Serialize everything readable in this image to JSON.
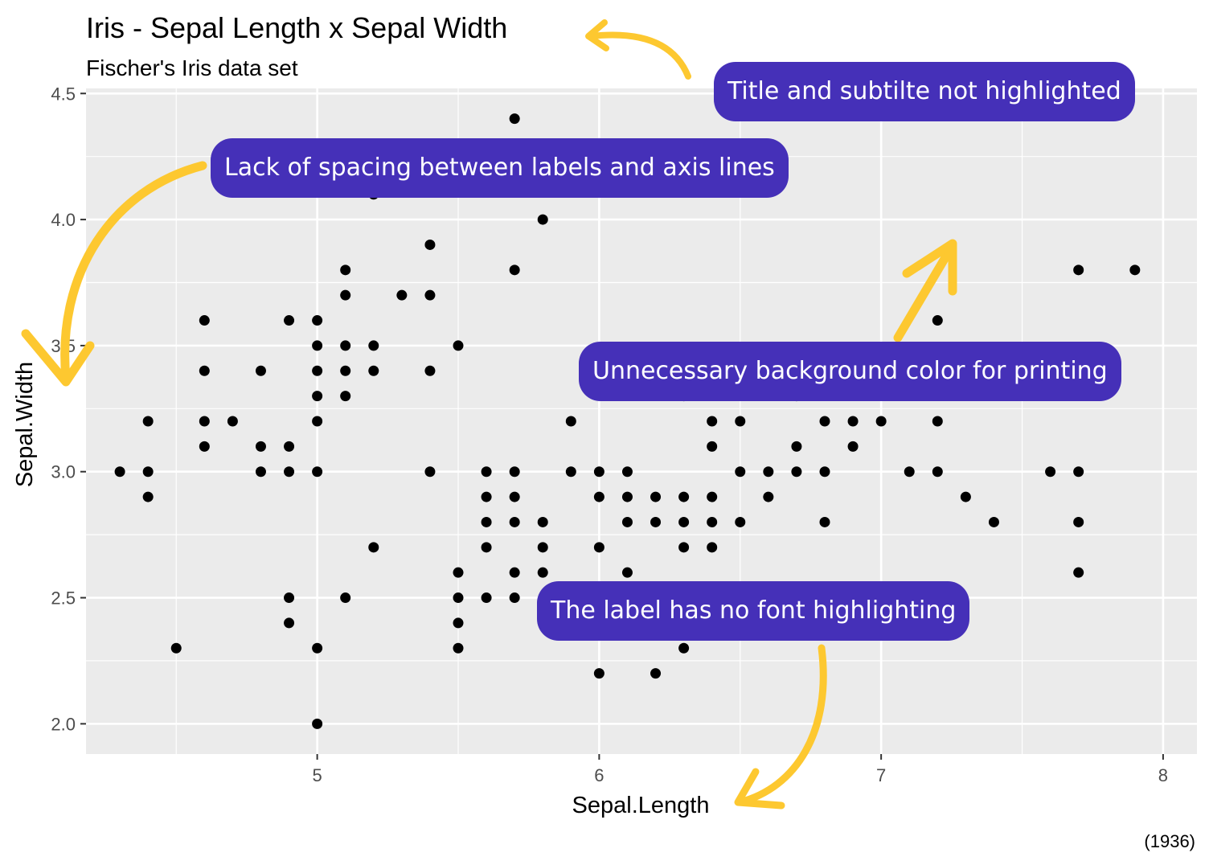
{
  "chart_data": {
    "type": "scatter",
    "title": "Iris - Sepal Length x Sepal Width",
    "subtitle": "Fischer's Iris data set",
    "caption": "(1936)",
    "xlabel": "Sepal.Length",
    "ylabel": "Sepal.Width",
    "xlim": [
      4.18,
      8.12
    ],
    "ylim": [
      1.88,
      4.52
    ],
    "x_ticks": [
      5,
      6,
      7,
      8
    ],
    "y_ticks": [
      2.0,
      2.5,
      3.0,
      3.5,
      4.0,
      4.5
    ],
    "x_tick_labels": [
      "5",
      "6",
      "7",
      "8"
    ],
    "y_tick_labels": [
      "2.0",
      "2.5",
      "3.0",
      "3.5",
      "4.0",
      "4.5"
    ],
    "grid": true,
    "background": "#ebebeb",
    "point_color": "#000000",
    "points": [
      [
        4.3,
        3.0
      ],
      [
        4.4,
        2.9
      ],
      [
        4.4,
        3.0
      ],
      [
        4.4,
        3.2
      ],
      [
        4.5,
        2.3
      ],
      [
        4.6,
        3.1
      ],
      [
        4.6,
        3.2
      ],
      [
        4.6,
        3.4
      ],
      [
        4.6,
        3.6
      ],
      [
        4.7,
        3.2
      ],
      [
        4.8,
        3.0
      ],
      [
        4.8,
        3.1
      ],
      [
        4.8,
        3.4
      ],
      [
        4.9,
        2.4
      ],
      [
        4.9,
        2.5
      ],
      [
        4.9,
        3.0
      ],
      [
        4.9,
        3.1
      ],
      [
        4.9,
        3.6
      ],
      [
        5.0,
        2.0
      ],
      [
        5.0,
        2.3
      ],
      [
        5.0,
        3.0
      ],
      [
        5.0,
        3.2
      ],
      [
        5.0,
        3.3
      ],
      [
        5.0,
        3.4
      ],
      [
        5.0,
        3.5
      ],
      [
        5.0,
        3.6
      ],
      [
        5.1,
        2.5
      ],
      [
        5.1,
        3.3
      ],
      [
        5.1,
        3.4
      ],
      [
        5.1,
        3.5
      ],
      [
        5.1,
        3.7
      ],
      [
        5.1,
        3.8
      ],
      [
        5.2,
        2.7
      ],
      [
        5.2,
        3.4
      ],
      [
        5.2,
        3.5
      ],
      [
        5.2,
        4.1
      ],
      [
        5.3,
        3.7
      ],
      [
        5.4,
        3.0
      ],
      [
        5.4,
        3.4
      ],
      [
        5.4,
        3.7
      ],
      [
        5.4,
        3.9
      ],
      [
        5.5,
        2.3
      ],
      [
        5.5,
        2.4
      ],
      [
        5.5,
        2.5
      ],
      [
        5.5,
        2.6
      ],
      [
        5.5,
        3.5
      ],
      [
        5.6,
        2.5
      ],
      [
        5.6,
        2.7
      ],
      [
        5.6,
        2.8
      ],
      [
        5.6,
        2.9
      ],
      [
        5.6,
        3.0
      ],
      [
        5.7,
        2.5
      ],
      [
        5.7,
        2.6
      ],
      [
        5.7,
        2.8
      ],
      [
        5.7,
        2.9
      ],
      [
        5.7,
        3.0
      ],
      [
        5.7,
        3.8
      ],
      [
        5.7,
        4.4
      ],
      [
        5.8,
        2.6
      ],
      [
        5.8,
        2.7
      ],
      [
        5.8,
        2.8
      ],
      [
        5.8,
        4.0
      ],
      [
        5.9,
        3.0
      ],
      [
        5.9,
        3.2
      ],
      [
        6.0,
        2.2
      ],
      [
        6.0,
        2.7
      ],
      [
        6.0,
        2.9
      ],
      [
        6.0,
        3.0
      ],
      [
        6.1,
        2.6
      ],
      [
        6.1,
        2.8
      ],
      [
        6.1,
        2.9
      ],
      [
        6.1,
        3.0
      ],
      [
        6.2,
        2.2
      ],
      [
        6.2,
        2.8
      ],
      [
        6.2,
        2.9
      ],
      [
        6.3,
        2.3
      ],
      [
        6.3,
        2.5
      ],
      [
        6.3,
        2.7
      ],
      [
        6.3,
        2.8
      ],
      [
        6.3,
        2.9
      ],
      [
        6.3,
        3.3
      ],
      [
        6.4,
        2.7
      ],
      [
        6.4,
        2.8
      ],
      [
        6.4,
        2.9
      ],
      [
        6.4,
        3.1
      ],
      [
        6.4,
        3.2
      ],
      [
        6.5,
        2.8
      ],
      [
        6.5,
        3.0
      ],
      [
        6.5,
        3.2
      ],
      [
        6.6,
        2.9
      ],
      [
        6.6,
        3.0
      ],
      [
        6.7,
        3.0
      ],
      [
        6.7,
        3.1
      ],
      [
        6.7,
        3.3
      ],
      [
        6.8,
        2.8
      ],
      [
        6.8,
        3.0
      ],
      [
        6.8,
        3.2
      ],
      [
        6.9,
        3.1
      ],
      [
        6.9,
        3.2
      ],
      [
        7.0,
        3.2
      ],
      [
        7.1,
        3.0
      ],
      [
        7.2,
        3.0
      ],
      [
        7.2,
        3.2
      ],
      [
        7.2,
        3.6
      ],
      [
        7.3,
        2.9
      ],
      [
        7.4,
        2.8
      ],
      [
        7.6,
        3.0
      ],
      [
        7.7,
        2.6
      ],
      [
        7.7,
        2.8
      ],
      [
        7.7,
        3.0
      ],
      [
        7.7,
        3.8
      ],
      [
        7.9,
        3.8
      ]
    ]
  },
  "callouts": {
    "title_note": "Title and subtilte not highlighted",
    "spacing_note": "Lack of spacing between labels and axis lines",
    "background_note": "Unnecessary background color for printing",
    "label_note": "The label has no font highlighting"
  },
  "colors": {
    "callout_bg": "#4530b8",
    "callout_text": "#ffffff",
    "arrow": "#fdc830",
    "grid": "#ffffff",
    "panel": "#ebebeb"
  }
}
